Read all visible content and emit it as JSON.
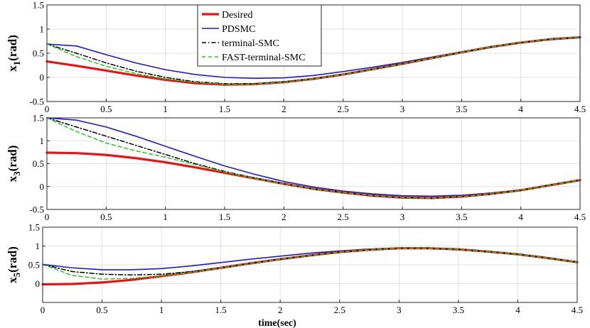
{
  "chart_data": [
    {
      "type": "line",
      "id": "x1",
      "ylabel": "x",
      "ylabel_sub": "1",
      "ylabel_unit": "(rad)",
      "xlabel": "",
      "xlim": [
        0,
        4.5
      ],
      "ylim": [
        -0.5,
        1.5
      ],
      "xticks": [
        "0",
        "0.5",
        "1",
        "1.5",
        "2",
        "2.5",
        "3",
        "3.5",
        "4",
        "4.5"
      ],
      "yticks": [
        "-0.5",
        "0",
        "0.5",
        "1",
        "1.5"
      ],
      "grid": true,
      "legend": {
        "placement": "top-center",
        "entries": [
          {
            "name": "Desired",
            "color": "#ee1111",
            "style": "solid-thick"
          },
          {
            "name": "PDSMC",
            "color": "#1a1adb",
            "style": "solid"
          },
          {
            "name": "terminal-SMC",
            "color": "#000000",
            "style": "dashdot"
          },
          {
            "name": "FAST-terminal-SMC",
            "color": "#22cc22",
            "style": "dashed"
          }
        ]
      },
      "x": [
        0,
        0.25,
        0.5,
        0.75,
        1,
        1.25,
        1.5,
        1.75,
        2,
        2.25,
        2.5,
        2.75,
        3,
        3.25,
        3.5,
        3.75,
        4,
        4.25,
        4.5
      ],
      "series": [
        {
          "name": "Desired",
          "values": [
            0.33,
            0.24,
            0.14,
            0.04,
            -0.05,
            -0.12,
            -0.15,
            -0.14,
            -0.1,
            -0.03,
            0.06,
            0.17,
            0.28,
            0.4,
            0.52,
            0.63,
            0.72,
            0.79,
            0.83
          ]
        },
        {
          "name": "PDSMC",
          "values": [
            0.69,
            0.65,
            0.47,
            0.3,
            0.16,
            0.06,
            0.0,
            -0.02,
            -0.01,
            0.04,
            0.12,
            0.21,
            0.31,
            0.42,
            0.53,
            0.64,
            0.73,
            0.8,
            0.84
          ]
        },
        {
          "name": "terminal-SMC",
          "values": [
            0.69,
            0.5,
            0.3,
            0.13,
            0.0,
            -0.09,
            -0.13,
            -0.13,
            -0.09,
            -0.03,
            0.06,
            0.17,
            0.28,
            0.4,
            0.52,
            0.63,
            0.72,
            0.79,
            0.83
          ]
        },
        {
          "name": "FAST-terminal-SMC",
          "values": [
            0.69,
            0.43,
            0.23,
            0.08,
            -0.03,
            -0.1,
            -0.14,
            -0.14,
            -0.1,
            -0.03,
            0.06,
            0.17,
            0.28,
            0.4,
            0.52,
            0.63,
            0.72,
            0.79,
            0.83
          ]
        }
      ]
    },
    {
      "type": "line",
      "id": "x3",
      "ylabel": "x",
      "ylabel_sub": "3",
      "ylabel_unit": "(rad)",
      "xlabel": "",
      "xlim": [
        0,
        4.5
      ],
      "ylim": [
        -0.5,
        1.5
      ],
      "xticks": [
        "0",
        "0.5",
        "1",
        "1.5",
        "2",
        "2.5",
        "3",
        "3.5",
        "4",
        "4.5"
      ],
      "yticks": [
        "-0.5",
        "0",
        "0.5",
        "1",
        "1.5"
      ],
      "grid": true,
      "x": [
        0,
        0.25,
        0.5,
        0.75,
        1,
        1.25,
        1.5,
        1.75,
        2,
        2.25,
        2.5,
        2.75,
        3,
        3.25,
        3.5,
        3.75,
        4,
        4.25,
        4.5
      ],
      "series": [
        {
          "name": "Desired",
          "values": [
            0.74,
            0.73,
            0.69,
            0.62,
            0.53,
            0.42,
            0.3,
            0.18,
            0.06,
            -0.05,
            -0.13,
            -0.2,
            -0.24,
            -0.25,
            -0.22,
            -0.16,
            -0.08,
            0.03,
            0.14
          ]
        },
        {
          "name": "PDSMC",
          "values": [
            1.5,
            1.45,
            1.3,
            1.1,
            0.88,
            0.66,
            0.45,
            0.27,
            0.11,
            -0.01,
            -0.1,
            -0.16,
            -0.2,
            -0.21,
            -0.19,
            -0.14,
            -0.07,
            0.03,
            0.14
          ]
        },
        {
          "name": "terminal-SMC",
          "values": [
            1.5,
            1.3,
            1.1,
            0.9,
            0.7,
            0.5,
            0.33,
            0.19,
            0.06,
            -0.05,
            -0.13,
            -0.2,
            -0.24,
            -0.25,
            -0.22,
            -0.16,
            -0.08,
            0.03,
            0.14
          ]
        },
        {
          "name": "FAST-terminal-SMC",
          "values": [
            1.5,
            1.2,
            0.95,
            0.78,
            0.64,
            0.48,
            0.32,
            0.18,
            0.06,
            -0.05,
            -0.13,
            -0.2,
            -0.24,
            -0.25,
            -0.22,
            -0.16,
            -0.08,
            0.03,
            0.14
          ]
        }
      ]
    },
    {
      "type": "line",
      "id": "x5",
      "ylabel": "x",
      "ylabel_sub": "5",
      "ylabel_unit": "(rad)",
      "xlabel": "time(sec)",
      "xlim": [
        0,
        4.5
      ],
      "ylim": [
        -0.5,
        1.5
      ],
      "xticks": [
        "0",
        "0.5",
        "1",
        "1.5",
        "2",
        "2.5",
        "3",
        "3.5",
        "4",
        "4.5"
      ],
      "yticks": [
        "0",
        "0.5",
        "1",
        "1.5"
      ],
      "grid": true,
      "x": [
        0,
        0.25,
        0.5,
        0.75,
        1,
        1.25,
        1.5,
        1.75,
        2,
        2.25,
        2.5,
        2.75,
        3,
        3.25,
        3.5,
        3.75,
        4,
        4.25,
        4.5
      ],
      "series": [
        {
          "name": "Desired",
          "values": [
            -0.02,
            -0.01,
            0.03,
            0.1,
            0.2,
            0.3,
            0.42,
            0.54,
            0.65,
            0.75,
            0.84,
            0.9,
            0.94,
            0.94,
            0.91,
            0.85,
            0.78,
            0.68,
            0.57
          ]
        },
        {
          "name": "PDSMC",
          "values": [
            0.51,
            0.42,
            0.37,
            0.37,
            0.4,
            0.47,
            0.56,
            0.65,
            0.73,
            0.81,
            0.87,
            0.92,
            0.95,
            0.95,
            0.92,
            0.86,
            0.78,
            0.68,
            0.57
          ]
        },
        {
          "name": "terminal-SMC",
          "values": [
            0.51,
            0.32,
            0.25,
            0.23,
            0.25,
            0.32,
            0.42,
            0.54,
            0.65,
            0.75,
            0.84,
            0.9,
            0.94,
            0.94,
            0.91,
            0.85,
            0.78,
            0.68,
            0.57
          ]
        },
        {
          "name": "FAST-terminal-SMC",
          "values": [
            0.51,
            0.22,
            0.12,
            0.14,
            0.21,
            0.3,
            0.42,
            0.54,
            0.65,
            0.75,
            0.84,
            0.9,
            0.94,
            0.94,
            0.91,
            0.85,
            0.78,
            0.68,
            0.57
          ]
        }
      ]
    }
  ]
}
